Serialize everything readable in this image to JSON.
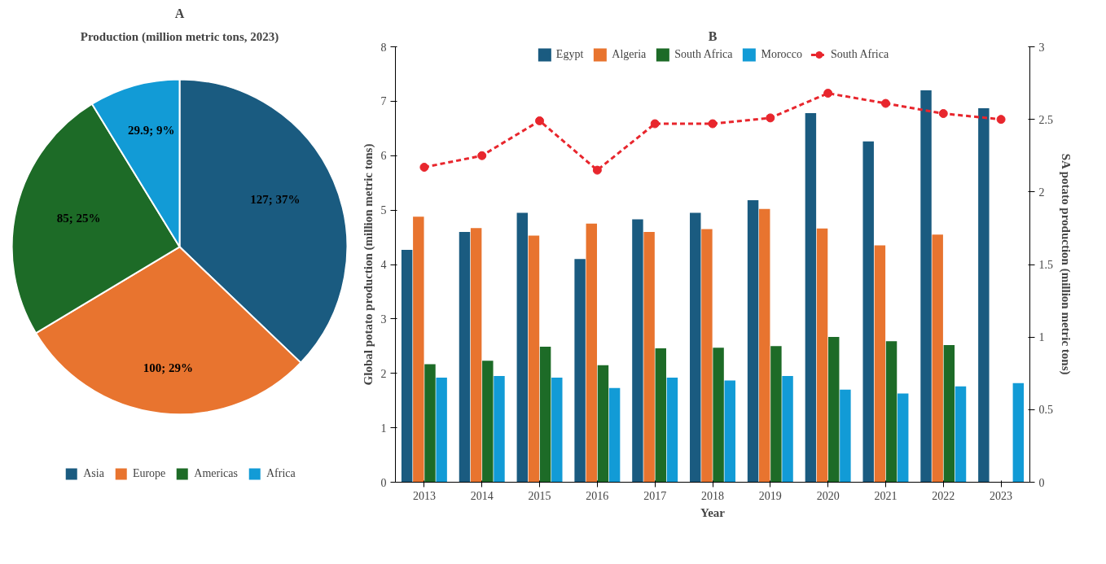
{
  "chart_data": [
    {
      "type": "pie",
      "title": "A",
      "subtitle": "Production (million metric tons, 2023)",
      "categories": [
        "Asia",
        "Europe",
        "Americas",
        "Africa"
      ],
      "values": [
        127,
        100,
        85,
        29.9
      ],
      "colors": [
        "#1a5b80",
        "#e8742f",
        "#1d6b27",
        "#129bd6"
      ],
      "value_labels": [
        "127; 37%",
        "100; 29%",
        "85; 25%",
        "29.9; 9%"
      ],
      "legend": "bottom"
    },
    {
      "type": "bar",
      "title": "B",
      "xlabel": "Year",
      "ylabel": "Global potato production (million metric tons)",
      "y2label": "SA potato production (million metric tons)",
      "categories": [
        "2013",
        "2014",
        "2015",
        "2016",
        "2017",
        "2018",
        "2019",
        "2020",
        "2021",
        "2022",
        "2023"
      ],
      "series": [
        {
          "name": "Egypt",
          "color": "#1a5b80",
          "values": [
            4.27,
            4.6,
            4.95,
            4.1,
            4.83,
            4.95,
            5.18,
            6.78,
            6.26,
            7.2,
            6.87
          ]
        },
        {
          "name": "Algeria",
          "color": "#e8742f",
          "values": [
            4.88,
            4.67,
            4.53,
            4.75,
            4.6,
            4.65,
            5.02,
            4.66,
            4.35,
            4.55,
            null
          ]
        },
        {
          "name": "South Africa",
          "color": "#1d6b27",
          "values": [
            2.17,
            2.23,
            2.49,
            2.15,
            2.46,
            2.47,
            2.5,
            2.67,
            2.59,
            2.52,
            null
          ]
        },
        {
          "name": "Morocco",
          "color": "#129bd6",
          "values": [
            1.92,
            1.95,
            1.92,
            1.73,
            1.92,
            1.87,
            1.95,
            1.7,
            1.63,
            1.76,
            1.82
          ]
        },
        {
          "name": "South Africa",
          "color": "#e8262d",
          "type": "line",
          "axis": "y2",
          "marker": "circle",
          "line_style": "dashed",
          "values": [
            2.17,
            2.25,
            2.49,
            2.15,
            2.47,
            2.47,
            2.51,
            2.68,
            2.61,
            2.54,
            2.5
          ]
        }
      ],
      "ylim": [
        0,
        8
      ],
      "yticks": [
        0,
        1,
        2,
        3,
        4,
        5,
        6,
        7,
        8
      ],
      "y2lim": [
        0,
        3
      ],
      "y2ticks": [
        0,
        0.5,
        1,
        1.5,
        2,
        2.5,
        3
      ],
      "grid": false,
      "legend": "top"
    }
  ]
}
